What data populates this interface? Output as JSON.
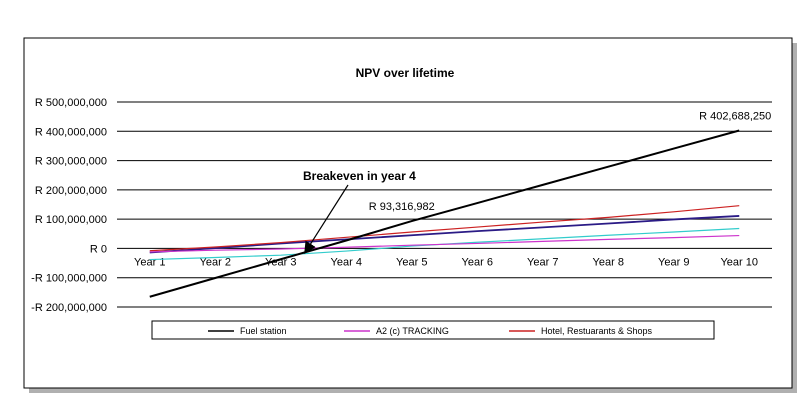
{
  "chart_data": {
    "type": "line",
    "title": "NPV over lifetime",
    "categories": [
      "Year 1",
      "Year 2",
      "Year 3",
      "Year 4",
      "Year 5",
      "Year 6",
      "Year 7",
      "Year 8",
      "Year 9",
      "Year 10"
    ],
    "ylim": [
      -200000000,
      500000000
    ],
    "yticks": [
      {
        "value": 500000000,
        "label": "R 500,000,000"
      },
      {
        "value": 400000000,
        "label": "R 400,000,000"
      },
      {
        "value": 300000000,
        "label": "R 300,000,000"
      },
      {
        "value": 200000000,
        "label": "R 200,000,000"
      },
      {
        "value": 100000000,
        "label": "R 100,000,000"
      },
      {
        "value": 0,
        "label": "R 0"
      },
      {
        "value": -100000000,
        "label": "-R 100,000,000"
      },
      {
        "value": -200000000,
        "label": "-R 200,000,000"
      }
    ],
    "grid": "horizontal",
    "legend_position": "bottom",
    "series": [
      {
        "name": "Fuel station",
        "color": "#000000",
        "values": [
          -165000000,
          -101000000,
          -37000000,
          27000000,
          93316982,
          155000000,
          217000000,
          279000000,
          341000000,
          402688250
        ]
      },
      {
        "name": "A2 (c) TRACKING",
        "color": "#cc33cc",
        "values": [
          -12000000,
          -6000000,
          -2000000,
          4000000,
          11000000,
          17000000,
          24000000,
          31000000,
          37000000,
          44000000
        ]
      },
      {
        "name": "Hotel, Restuarants & Shops",
        "color": "#cc2222",
        "values": [
          -8000000,
          5000000,
          20000000,
          38000000,
          56000000,
          73000000,
          90000000,
          106000000,
          125000000,
          146000000
        ]
      },
      {
        "color": "#2b1b86",
        "values": [
          -14000000,
          1000000,
          17000000,
          31000000,
          45000000,
          59000000,
          72000000,
          85000000,
          99000000,
          111000000
        ]
      },
      {
        "color": "#33cccc",
        "values": [
          -38000000,
          -31000000,
          -23000000,
          -9000000,
          8000000,
          21000000,
          33000000,
          45000000,
          56000000,
          68000000
        ]
      }
    ],
    "annotations": [
      {
        "text": "Breakeven in year 4",
        "bold": true,
        "arrow_to": {
          "x": "Year 3",
          "y": -5000000
        }
      },
      {
        "text": "R 93,316,982",
        "series": "Fuel station",
        "category": "Year 5"
      },
      {
        "text": "R 402,688,250",
        "series": "Fuel station",
        "category": "Year 10"
      }
    ]
  }
}
